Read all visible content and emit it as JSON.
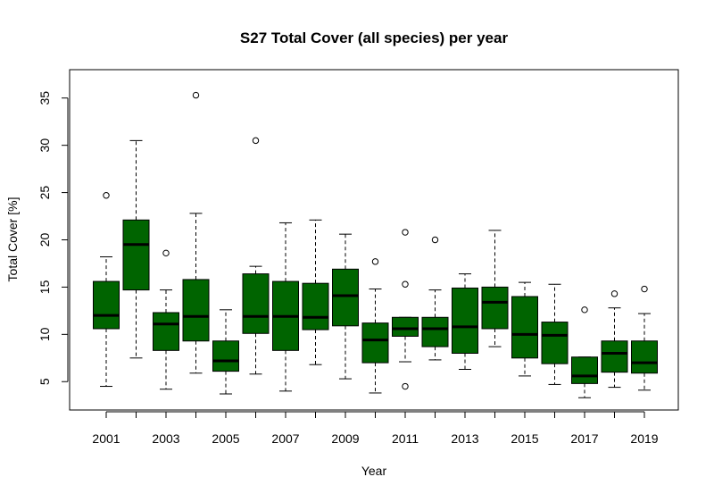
{
  "chart_data": {
    "type": "boxplot",
    "title": "S27 Total Cover (all species) per year",
    "xlabel": "Year",
    "ylabel": "Total Cover [%]",
    "ylim": [
      2,
      38
    ],
    "yticks": [
      5,
      10,
      15,
      20,
      25,
      30,
      35
    ],
    "x_tick_labels": [
      "2001",
      "2003",
      "2005",
      "2007",
      "2009",
      "2011",
      "2013",
      "2015",
      "2017",
      "2019"
    ],
    "box_fill": "#006400",
    "categories": [
      "2001",
      "2002",
      "2003",
      "2004",
      "2005",
      "2006",
      "2007",
      "2008",
      "2009",
      "2010",
      "2011",
      "2012",
      "2013",
      "2014",
      "2015",
      "2016",
      "2017",
      "2018",
      "2019"
    ],
    "boxes": [
      {
        "year": "2001",
        "whisker_low": 4.5,
        "q1": 10.6,
        "median": 12.0,
        "q3": 15.6,
        "whisker_high": 18.2,
        "outliers": [
          24.7
        ]
      },
      {
        "year": "2002",
        "whisker_low": 7.5,
        "q1": 14.7,
        "median": 19.5,
        "q3": 22.1,
        "whisker_high": 30.5,
        "outliers": []
      },
      {
        "year": "2003",
        "whisker_low": 4.2,
        "q1": 8.3,
        "median": 11.1,
        "q3": 12.3,
        "whisker_high": 14.7,
        "outliers": [
          18.6
        ]
      },
      {
        "year": "2004",
        "whisker_low": 5.9,
        "q1": 9.3,
        "median": 11.9,
        "q3": 15.8,
        "whisker_high": 22.8,
        "outliers": [
          35.3
        ]
      },
      {
        "year": "2005",
        "whisker_low": 3.7,
        "q1": 6.1,
        "median": 7.2,
        "q3": 9.3,
        "whisker_high": 12.6,
        "outliers": []
      },
      {
        "year": "2006",
        "whisker_low": 5.8,
        "q1": 10.1,
        "median": 11.9,
        "q3": 16.4,
        "whisker_high": 17.2,
        "outliers": [
          30.5
        ]
      },
      {
        "year": "2007",
        "whisker_low": 4.0,
        "q1": 8.3,
        "median": 11.9,
        "q3": 15.6,
        "whisker_high": 21.8,
        "outliers": []
      },
      {
        "year": "2008",
        "whisker_low": 6.8,
        "q1": 10.5,
        "median": 11.8,
        "q3": 15.4,
        "whisker_high": 22.1,
        "outliers": []
      },
      {
        "year": "2009",
        "whisker_low": 5.3,
        "q1": 10.9,
        "median": 14.1,
        "q3": 16.9,
        "whisker_high": 20.6,
        "outliers": []
      },
      {
        "year": "2010",
        "whisker_low": 3.8,
        "q1": 7.0,
        "median": 9.4,
        "q3": 11.2,
        "whisker_high": 14.8,
        "outliers": [
          17.7
        ]
      },
      {
        "year": "2011",
        "whisker_low": 7.1,
        "q1": 9.8,
        "median": 10.6,
        "q3": 11.8,
        "whisker_high": 11.8,
        "outliers": [
          20.8,
          15.3,
          4.5
        ]
      },
      {
        "year": "2012",
        "whisker_low": 7.3,
        "q1": 8.7,
        "median": 10.6,
        "q3": 11.8,
        "whisker_high": 14.7,
        "outliers": [
          20.0
        ]
      },
      {
        "year": "2013",
        "whisker_low": 6.3,
        "q1": 8.0,
        "median": 10.8,
        "q3": 14.9,
        "whisker_high": 16.4,
        "outliers": []
      },
      {
        "year": "2014",
        "whisker_low": 8.7,
        "q1": 10.6,
        "median": 13.4,
        "q3": 15.0,
        "whisker_high": 21.0,
        "outliers": []
      },
      {
        "year": "2015",
        "whisker_low": 5.6,
        "q1": 7.5,
        "median": 10.0,
        "q3": 14.0,
        "whisker_high": 15.5,
        "outliers": []
      },
      {
        "year": "2016",
        "whisker_low": 4.7,
        "q1": 6.9,
        "median": 9.9,
        "q3": 11.3,
        "whisker_high": 15.3,
        "outliers": []
      },
      {
        "year": "2017",
        "whisker_low": 3.3,
        "q1": 4.8,
        "median": 5.6,
        "q3": 7.6,
        "whisker_high": 7.6,
        "outliers": [
          12.6
        ]
      },
      {
        "year": "2018",
        "whisker_low": 4.4,
        "q1": 6.0,
        "median": 8.0,
        "q3": 9.3,
        "whisker_high": 12.8,
        "outliers": [
          14.3
        ]
      },
      {
        "year": "2019",
        "whisker_low": 4.1,
        "q1": 5.9,
        "median": 7.0,
        "q3": 9.3,
        "whisker_high": 12.2,
        "outliers": [
          14.8
        ]
      }
    ]
  }
}
